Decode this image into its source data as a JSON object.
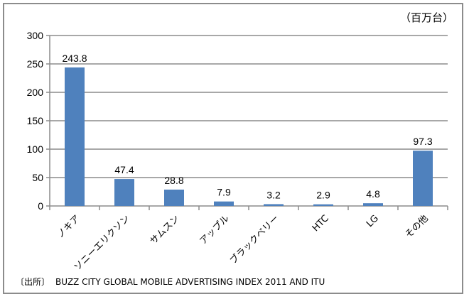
{
  "chart_data": {
    "type": "bar",
    "unit_label": "（百万台）",
    "categories": [
      "ノキア",
      "ソニーエリクソン",
      "サムスン",
      "アップル",
      "ブラックベリー",
      "HTC",
      "LG",
      "その他"
    ],
    "values": [
      243.8,
      47.4,
      28.8,
      7.9,
      3.2,
      2.9,
      4.8,
      97.3
    ],
    "data_labels": [
      "243.8",
      "47.4",
      "28.8",
      "7.9",
      "3.2",
      "2.9",
      "4.8",
      "97.3"
    ],
    "yticks": [
      "0",
      "50",
      "100",
      "150",
      "200",
      "250",
      "300"
    ],
    "ylim": [
      0,
      300
    ],
    "grid": true,
    "bar_color": "#4f81bd",
    "source_prefix": "〔出所〕",
    "source": "BUZZ CITY GLOBAL MOBILE ADVERTISING INDEX 2011 AND ITU"
  }
}
